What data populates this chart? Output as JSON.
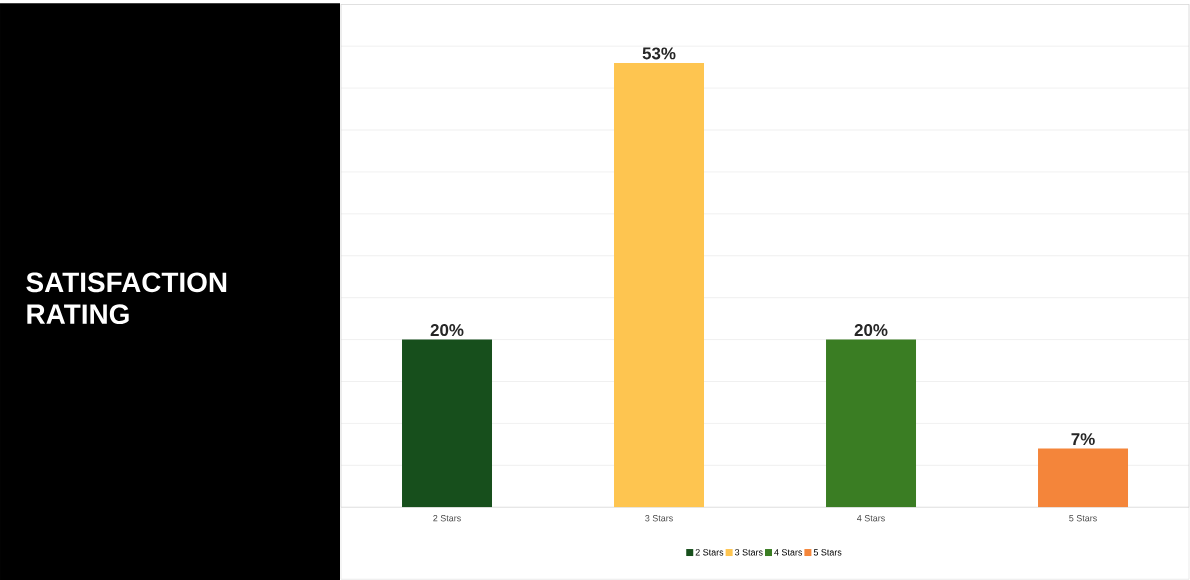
{
  "chart_data": {
    "type": "bar",
    "title": "SATISFACTION RATING",
    "categories": [
      "2 Stars",
      "3 Stars",
      "4 Stars",
      "5 Stars"
    ],
    "series": [
      {
        "name": "2 Stars",
        "color": "#174f1c",
        "values": [
          20,
          null,
          null,
          null
        ],
        "value_labels": [
          "20%",
          null,
          null,
          null
        ]
      },
      {
        "name": "3 Stars",
        "color": "#fec550",
        "values": [
          null,
          53,
          null,
          null
        ],
        "value_labels": [
          null,
          "53%",
          null,
          null
        ]
      },
      {
        "name": "4 Stars",
        "color": "#3a7d23",
        "values": [
          null,
          null,
          20,
          null
        ],
        "value_labels": [
          null,
          null,
          "20%",
          null
        ]
      },
      {
        "name": "5 Stars",
        "color": "#f4853a",
        "values": [
          null,
          null,
          null,
          7
        ],
        "value_labels": [
          null,
          null,
          null,
          "7%"
        ]
      }
    ],
    "ylim": [
      0,
      60
    ],
    "grid": "y",
    "legend": "bottom"
  }
}
